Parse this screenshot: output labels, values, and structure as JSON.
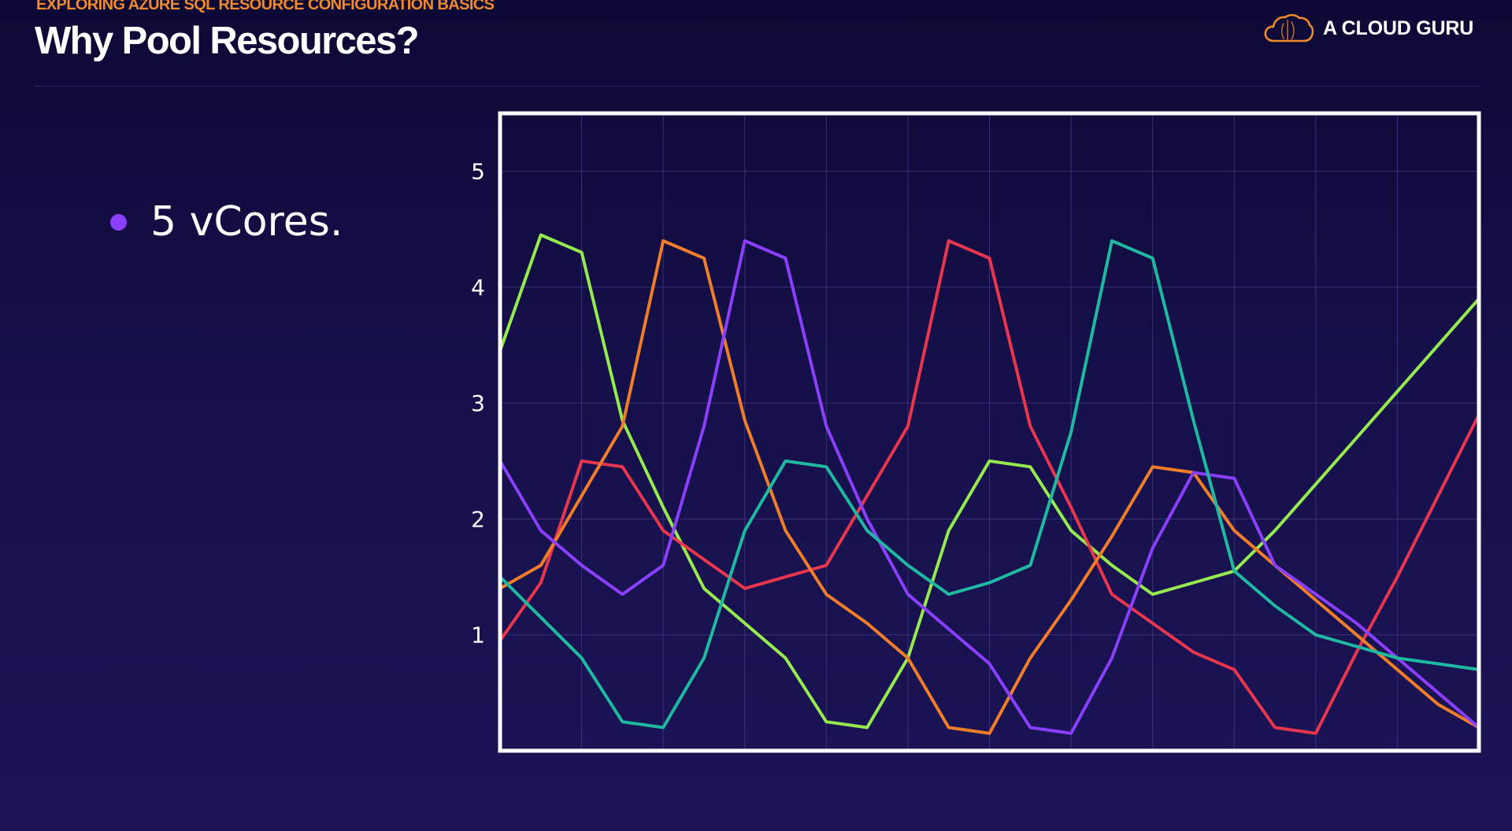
{
  "header": {
    "eyebrow": "EXPLORING AZURE SQL RESOURCE CONFIGURATION BASICS",
    "title": "Why Pool Resources?"
  },
  "brand": {
    "name": "A CLOUD GURU",
    "logo_icon": "cloud-logo-icon",
    "logo_color": "#f08a2c"
  },
  "bullets": [
    {
      "text": "5 vCores."
    }
  ],
  "colors": {
    "accent_orange": "#f08a2c",
    "accent_purple": "#8a3ffc",
    "background": "#15104a"
  },
  "chart_data": {
    "type": "line",
    "ylim": [
      0,
      5.5
    ],
    "xlim": [
      0,
      24
    ],
    "y_ticks": [
      1,
      2,
      3,
      4,
      5
    ],
    "grid": true,
    "series": [
      {
        "color": "#96ea4f",
        "x": [
          0,
          1,
          2,
          3,
          4,
          5,
          6,
          7,
          8,
          9,
          10,
          11,
          12,
          13,
          14,
          15,
          16,
          17,
          18,
          19,
          20,
          21,
          22,
          23,
          24
        ],
        "y": [
          3.45,
          4.45,
          4.3,
          2.85,
          2.1,
          1.4,
          1.1,
          0.8,
          0.25,
          0.2,
          0.8,
          1.9,
          2.5,
          2.45,
          1.9,
          1.6,
          1.35,
          1.45,
          1.55,
          1.9,
          2.3,
          2.7,
          3.1,
          3.5,
          3.9
        ]
      },
      {
        "color": "#e8364f",
        "x": [
          0,
          1,
          2,
          3,
          4,
          5,
          6,
          7,
          8,
          9,
          10,
          11,
          12,
          13,
          14,
          15,
          16,
          17,
          18,
          19,
          20,
          21,
          22,
          23,
          24
        ],
        "y": [
          0.95,
          1.45,
          2.5,
          2.45,
          1.9,
          1.65,
          1.4,
          1.5,
          1.6,
          2.2,
          2.8,
          4.4,
          4.25,
          2.8,
          2.1,
          1.35,
          1.1,
          0.85,
          0.7,
          0.2,
          0.15,
          0.85,
          1.5,
          2.2,
          2.9
        ]
      },
      {
        "color": "#f07d2a",
        "x": [
          0,
          1,
          2,
          3,
          4,
          5,
          6,
          7,
          8,
          9,
          10,
          11,
          12,
          13,
          14,
          15,
          16,
          17,
          18,
          19,
          20,
          21,
          22,
          23,
          24
        ],
        "y": [
          1.4,
          1.6,
          2.2,
          2.8,
          4.4,
          4.25,
          2.85,
          1.9,
          1.35,
          1.1,
          0.8,
          0.2,
          0.15,
          0.8,
          1.3,
          1.85,
          2.45,
          2.4,
          1.9,
          1.6,
          1.3,
          1.0,
          0.7,
          0.4,
          0.2
        ]
      },
      {
        "color": "#8a3ffc",
        "x": [
          0,
          1,
          2,
          3,
          4,
          5,
          6,
          7,
          8,
          9,
          10,
          11,
          12,
          13,
          14,
          15,
          16,
          17,
          18,
          19,
          20,
          21,
          22,
          23,
          24
        ],
        "y": [
          2.5,
          1.9,
          1.6,
          1.35,
          1.6,
          2.8,
          4.4,
          4.25,
          2.8,
          2.0,
          1.35,
          1.05,
          0.75,
          0.2,
          0.15,
          0.8,
          1.75,
          2.4,
          2.35,
          1.6,
          1.35,
          1.1,
          0.8,
          0.5,
          0.2
        ]
      },
      {
        "color": "#1fb8a0",
        "x": [
          0,
          1,
          2,
          3,
          4,
          5,
          6,
          7,
          8,
          9,
          10,
          11,
          12,
          13,
          14,
          15,
          16,
          17,
          18,
          19,
          20,
          21,
          22,
          23,
          24
        ],
        "y": [
          1.5,
          1.15,
          0.8,
          0.25,
          0.2,
          0.8,
          1.9,
          2.5,
          2.45,
          1.9,
          1.6,
          1.35,
          1.45,
          1.6,
          2.75,
          4.4,
          4.25,
          2.85,
          1.55,
          1.25,
          1.0,
          0.9,
          0.8,
          0.75,
          0.7
        ]
      }
    ]
  }
}
